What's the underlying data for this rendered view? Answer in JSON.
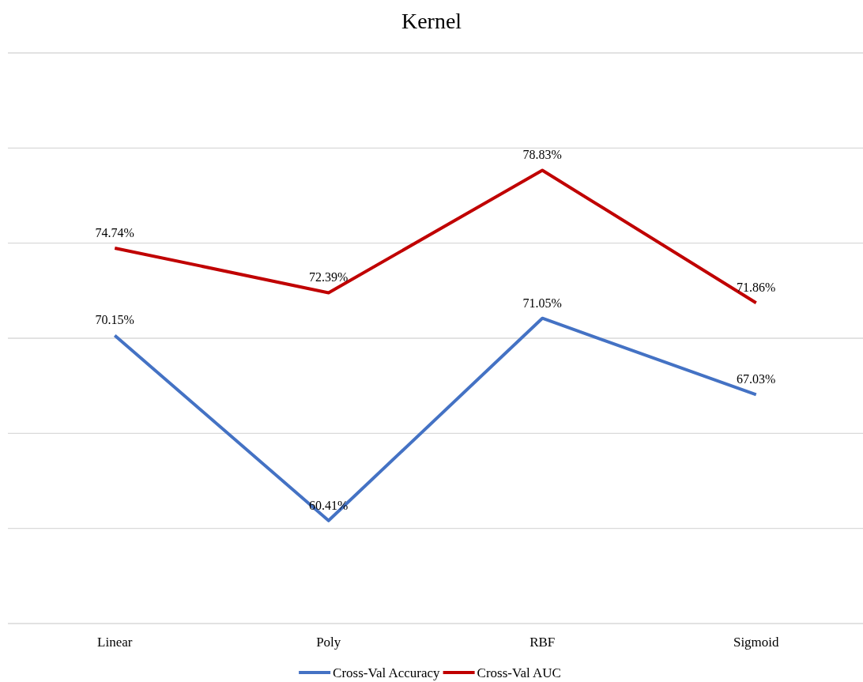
{
  "chart_data": {
    "type": "line",
    "title": "Kernel",
    "categories": [
      "Linear",
      "Poly",
      "RBF",
      "Sigmoid"
    ],
    "series": [
      {
        "name": "Cross-Val Accuracy",
        "color": "#4472c4",
        "values": [
          70.15,
          60.41,
          71.05,
          67.03
        ],
        "value_labels": [
          "70.15%",
          "60.41%",
          "71.05%",
          "67.03%"
        ]
      },
      {
        "name": "Cross-Val AUC",
        "color": "#c00000",
        "values": [
          74.74,
          72.39,
          78.83,
          71.86
        ],
        "value_labels": [
          "74.74%",
          "72.39%",
          "78.83%",
          "71.86%"
        ]
      }
    ],
    "ylim": [
      55,
      85
    ],
    "yticks": [
      {
        "value": 55,
        "label": null
      },
      {
        "value": 60,
        "label": null
      },
      {
        "value": 65,
        "label": null
      },
      {
        "value": 70,
        "label": null
      },
      {
        "value": 75,
        "label": null
      },
      {
        "value": 80,
        "label": null
      },
      {
        "value": 85,
        "label": null
      }
    ],
    "tick_labels": "x",
    "grid": "y",
    "legend": "bottom",
    "marker": "none",
    "line_style": "solid"
  }
}
